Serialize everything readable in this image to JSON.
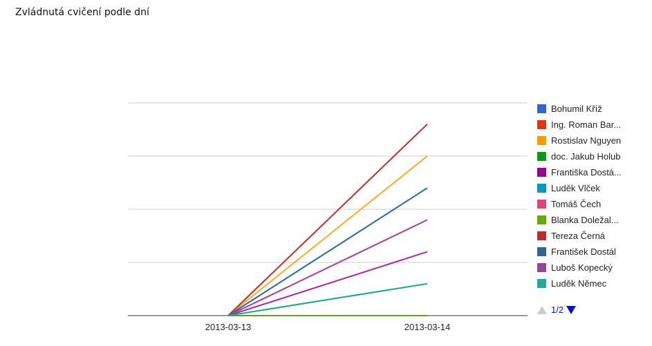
{
  "chart_data": {
    "type": "line",
    "title": "Zvládnutá cvičení podle dní",
    "xlabel": "",
    "ylabel": "",
    "x": [
      "2013-03-13",
      "2013-03-14"
    ],
    "ylim": [
      0,
      20
    ],
    "grid": true,
    "legend_position": "right",
    "series": [
      {
        "name": "Bohumil Kříž",
        "color": "#3366cc",
        "values": [
          0,
          0
        ]
      },
      {
        "name": "Ing. Roman Bar...",
        "color": "#dc3912",
        "values": [
          0,
          18
        ]
      },
      {
        "name": "Rostislav Nguyen",
        "color": "#ff9900",
        "values": [
          0,
          15
        ]
      },
      {
        "name": "doc. Jakub Holub",
        "color": "#109618",
        "values": [
          0,
          3
        ]
      },
      {
        "name": "Františka Dostá...",
        "color": "#990099",
        "values": [
          0,
          6
        ]
      },
      {
        "name": "Luděk Vlček",
        "color": "#0099c6",
        "values": [
          0,
          12
        ]
      },
      {
        "name": "Tomáš Čech",
        "color": "#dd4477",
        "values": [
          0,
          9
        ]
      },
      {
        "name": "Blanka Doležal...",
        "color": "#66aa00",
        "values": [
          0,
          0
        ]
      },
      {
        "name": "Tereza Černá",
        "color": "#b82e2e",
        "values": [
          0,
          18
        ]
      },
      {
        "name": "František Dostál",
        "color": "#316395",
        "values": [
          0,
          12
        ]
      },
      {
        "name": "Luboš Kopecký",
        "color": "#994499",
        "values": [
          0,
          9
        ]
      },
      {
        "name": "Luděk Němec",
        "color": "#22aa99",
        "values": [
          0,
          3
        ]
      }
    ]
  },
  "pager": {
    "label": "1/2"
  }
}
